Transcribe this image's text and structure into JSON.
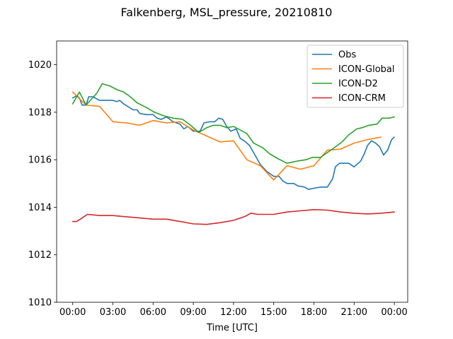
{
  "chart_data": {
    "type": "line",
    "title": "Falkenberg, MSL_pressure, 20210810",
    "xlabel": "Time [UTC]",
    "ylabel": "",
    "x_unit": "hours UTC",
    "xlim": [
      -1.2,
      25
    ],
    "ylim": [
      1010,
      1021
    ],
    "xticks": [
      0,
      3,
      6,
      9,
      12,
      15,
      18,
      21,
      24
    ],
    "xtick_labels": [
      "00:00",
      "03:00",
      "06:00",
      "09:00",
      "12:00",
      "15:00",
      "18:00",
      "21:00",
      "00:00"
    ],
    "yticks": [
      1010,
      1012,
      1014,
      1016,
      1018,
      1020
    ],
    "ytick_labels": [
      "1010",
      "1012",
      "1014",
      "1016",
      "1018",
      "1020"
    ],
    "grid": false,
    "legend": "upper right",
    "series": [
      {
        "name": "Obs",
        "color": "#1f77b4",
        "points": [
          [
            0,
            1018.6
          ],
          [
            0.3,
            1018.7
          ],
          [
            0.5,
            1018.6
          ],
          [
            0.7,
            1018.3
          ],
          [
            1,
            1018.3
          ],
          [
            1.2,
            1018.65
          ],
          [
            1.5,
            1018.65
          ],
          [
            2,
            1018.5
          ],
          [
            2.5,
            1018.5
          ],
          [
            3,
            1018.5
          ],
          [
            3.3,
            1018.45
          ],
          [
            3.5,
            1018.5
          ],
          [
            3.8,
            1018.35
          ],
          [
            4.5,
            1018.1
          ],
          [
            4.8,
            1018.1
          ],
          [
            5,
            1017.95
          ],
          [
            5.5,
            1017.9
          ],
          [
            6,
            1017.9
          ],
          [
            6.3,
            1017.75
          ],
          [
            6.6,
            1017.7
          ],
          [
            7,
            1017.8
          ],
          [
            7.5,
            1017.6
          ],
          [
            8,
            1017.5
          ],
          [
            8.3,
            1017.3
          ],
          [
            8.6,
            1017.4
          ],
          [
            9,
            1017.2
          ],
          [
            9.5,
            1017.2
          ],
          [
            9.8,
            1017.55
          ],
          [
            10.2,
            1017.6
          ],
          [
            10.6,
            1017.6
          ],
          [
            10.9,
            1017.75
          ],
          [
            11.2,
            1017.7
          ],
          [
            11.5,
            1017.4
          ],
          [
            11.8,
            1017.2
          ],
          [
            12.2,
            1017.3
          ],
          [
            12.5,
            1016.9
          ],
          [
            12.8,
            1016.8
          ],
          [
            13.2,
            1016.6
          ],
          [
            13.6,
            1016.2
          ],
          [
            14,
            1015.8
          ],
          [
            14.5,
            1015.5
          ],
          [
            15,
            1015.3
          ],
          [
            15.4,
            1015.3
          ],
          [
            15.7,
            1015.1
          ],
          [
            16,
            1015
          ],
          [
            16.5,
            1015
          ],
          [
            16.8,
            1014.9
          ],
          [
            17.3,
            1014.85
          ],
          [
            17.6,
            1014.75
          ],
          [
            18,
            1014.8
          ],
          [
            18.5,
            1014.85
          ],
          [
            19,
            1014.85
          ],
          [
            19.4,
            1015.2
          ],
          [
            19.6,
            1015.7
          ],
          [
            19.9,
            1015.85
          ],
          [
            20.2,
            1015.85
          ],
          [
            20.6,
            1015.85
          ],
          [
            21,
            1015.7
          ],
          [
            21.5,
            1015.95
          ],
          [
            21.8,
            1016.3
          ],
          [
            22,
            1016.6
          ],
          [
            22.3,
            1016.8
          ],
          [
            22.6,
            1016.7
          ],
          [
            22.9,
            1016.55
          ],
          [
            23.2,
            1016.2
          ],
          [
            23.5,
            1016.4
          ],
          [
            23.8,
            1016.85
          ],
          [
            24,
            1016.95
          ]
        ]
      },
      {
        "name": "ICON-Global",
        "color": "#ff7f0e",
        "points": [
          [
            0,
            1018.85
          ],
          [
            1,
            1018.3
          ],
          [
            2,
            1018.25
          ],
          [
            3,
            1017.6
          ],
          [
            4,
            1017.55
          ],
          [
            5,
            1017.45
          ],
          [
            6,
            1017.65
          ],
          [
            7,
            1017.55
          ],
          [
            8,
            1017.6
          ],
          [
            9,
            1017.25
          ],
          [
            10,
            1017
          ],
          [
            11,
            1016.75
          ],
          [
            12,
            1016.8
          ],
          [
            13,
            1016
          ],
          [
            14,
            1015.75
          ],
          [
            15,
            1015.15
          ],
          [
            16,
            1015.75
          ],
          [
            17,
            1015.6
          ],
          [
            18,
            1015.75
          ],
          [
            19,
            1016.4
          ],
          [
            20,
            1016.45
          ],
          [
            21,
            1016.7
          ],
          [
            22,
            1016.85
          ],
          [
            23,
            1016.95
          ]
        ]
      },
      {
        "name": "ICON-D2",
        "color": "#2ca02c",
        "points": [
          [
            0,
            1018.35
          ],
          [
            0.5,
            1018.85
          ],
          [
            1,
            1018.3
          ],
          [
            1.8,
            1018.8
          ],
          [
            2.2,
            1019.2
          ],
          [
            2.8,
            1019.1
          ],
          [
            3.3,
            1018.95
          ],
          [
            3.8,
            1018.85
          ],
          [
            4.3,
            1018.65
          ],
          [
            4.8,
            1018.4
          ],
          [
            5.5,
            1018.2
          ],
          [
            6.1,
            1018
          ],
          [
            6.8,
            1017.85
          ],
          [
            7.5,
            1017.75
          ],
          [
            8.2,
            1017.7
          ],
          [
            8.8,
            1017.45
          ],
          [
            9.4,
            1017.15
          ],
          [
            10,
            1017.35
          ],
          [
            10.5,
            1017.45
          ],
          [
            11,
            1017.45
          ],
          [
            11.5,
            1017.35
          ],
          [
            12,
            1017.4
          ],
          [
            12.5,
            1017.25
          ],
          [
            13,
            1017.1
          ],
          [
            13.5,
            1016.7
          ],
          [
            14.2,
            1016.5
          ],
          [
            14.7,
            1016.25
          ],
          [
            15.3,
            1016.05
          ],
          [
            16,
            1015.85
          ],
          [
            16.8,
            1015.95
          ],
          [
            17.4,
            1016
          ],
          [
            17.9,
            1016.1
          ],
          [
            18.5,
            1016.1
          ],
          [
            19,
            1016.3
          ],
          [
            19.5,
            1016.5
          ],
          [
            20.1,
            1016.75
          ],
          [
            20.6,
            1017.05
          ],
          [
            21.2,
            1017.3
          ],
          [
            21.6,
            1017.35
          ],
          [
            22.1,
            1017.45
          ],
          [
            22.7,
            1017.5
          ],
          [
            23.1,
            1017.75
          ],
          [
            23.6,
            1017.75
          ],
          [
            24,
            1017.8
          ]
        ]
      },
      {
        "name": "ICON-CRM",
        "color": "#d62728",
        "points": [
          [
            0,
            1013.4
          ],
          [
            0.3,
            1013.4
          ],
          [
            0.7,
            1013.55
          ],
          [
            1.1,
            1013.7
          ],
          [
            2,
            1013.65
          ],
          [
            3,
            1013.65
          ],
          [
            4,
            1013.6
          ],
          [
            5,
            1013.55
          ],
          [
            6,
            1013.5
          ],
          [
            7,
            1013.5
          ],
          [
            8,
            1013.4
          ],
          [
            9,
            1013.3
          ],
          [
            10,
            1013.28
          ],
          [
            11,
            1013.35
          ],
          [
            12,
            1013.45
          ],
          [
            12.8,
            1013.6
          ],
          [
            13.3,
            1013.75
          ],
          [
            13.8,
            1013.7
          ],
          [
            15,
            1013.7
          ],
          [
            16,
            1013.8
          ],
          [
            17,
            1013.85
          ],
          [
            18,
            1013.9
          ],
          [
            19,
            1013.88
          ],
          [
            20,
            1013.8
          ],
          [
            21,
            1013.75
          ],
          [
            22,
            1013.72
          ],
          [
            23,
            1013.75
          ],
          [
            24,
            1013.8
          ]
        ]
      }
    ]
  }
}
